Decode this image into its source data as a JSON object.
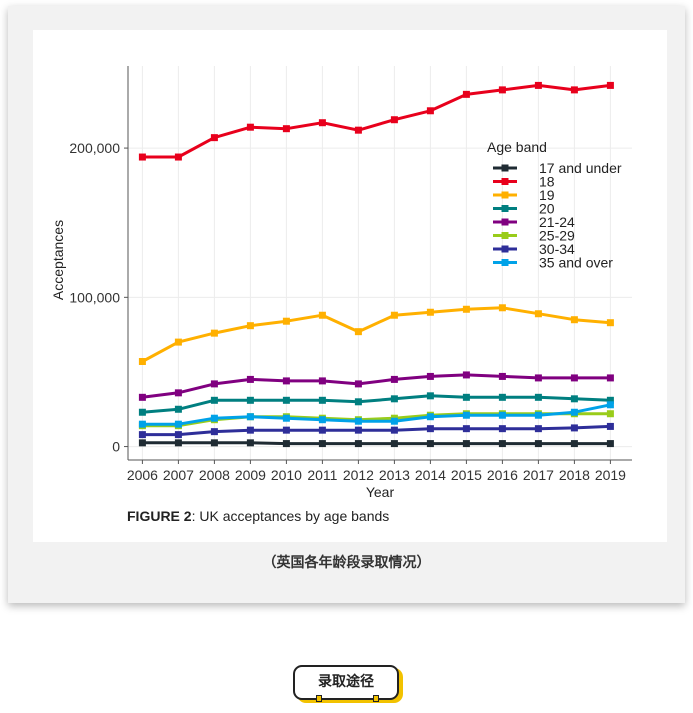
{
  "chart_data": {
    "type": "line",
    "xlabel": "Year",
    "ylabel": "Acceptances",
    "x": [
      2006,
      2007,
      2008,
      2009,
      2010,
      2011,
      2012,
      2013,
      2014,
      2015,
      2016,
      2017,
      2018,
      2019
    ],
    "xlim": [
      2005.6,
      2019.6
    ],
    "ylim": [
      -9000,
      255000
    ],
    "yticks": [
      0,
      100000,
      200000
    ],
    "ytick_labels": [
      "0",
      "100,000",
      "200,000"
    ],
    "grid": true,
    "legend_title": "Age band",
    "legend_position": "top-right",
    "series": [
      {
        "name": "17 and under",
        "color": "#1f2b33",
        "values": [
          2500,
          2500,
          2500,
          2500,
          2000,
          2000,
          2000,
          2000,
          2000,
          2000,
          2000,
          2000,
          2000,
          2000
        ]
      },
      {
        "name": "18",
        "color": "#e8001c",
        "values": [
          194000,
          194000,
          207000,
          214000,
          213000,
          217000,
          212000,
          219000,
          225000,
          236000,
          239000,
          242000,
          239000,
          242000
        ]
      },
      {
        "name": "19",
        "color": "#ffb000",
        "values": [
          57000,
          70000,
          76000,
          81000,
          84000,
          88000,
          77000,
          88000,
          90000,
          92000,
          93000,
          89000,
          85000,
          83000
        ]
      },
      {
        "name": "20",
        "color": "#007f80",
        "values": [
          23000,
          25000,
          31000,
          31000,
          31000,
          31000,
          30000,
          32000,
          34000,
          33000,
          33000,
          33000,
          32000,
          31000
        ]
      },
      {
        "name": "21-24",
        "color": "#800080",
        "values": [
          33000,
          36000,
          42000,
          45000,
          44000,
          44000,
          42000,
          45000,
          47000,
          48000,
          47000,
          46000,
          46000,
          46000
        ]
      },
      {
        "name": "25-29",
        "color": "#99cc1a",
        "values": [
          14000,
          14000,
          18000,
          20000,
          20000,
          19000,
          18000,
          19000,
          21000,
          22000,
          22000,
          22000,
          22000,
          22000
        ]
      },
      {
        "name": "30-34",
        "color": "#2e2e99",
        "values": [
          8000,
          8000,
          10000,
          11000,
          11000,
          11000,
          11000,
          11000,
          12000,
          12000,
          12000,
          12000,
          12500,
          13500
        ]
      },
      {
        "name": "35 and over",
        "color": "#00a2e8",
        "values": [
          15000,
          15000,
          19000,
          20000,
          19000,
          18000,
          17000,
          17000,
          20000,
          21000,
          21000,
          21000,
          23000,
          28000
        ]
      }
    ]
  },
  "caption": {
    "label": "FIGURE 2",
    "text": ": UK acceptances by age bands"
  },
  "cn_caption": "（英国各年龄段录取情况）",
  "button": {
    "label": "录取途径"
  }
}
